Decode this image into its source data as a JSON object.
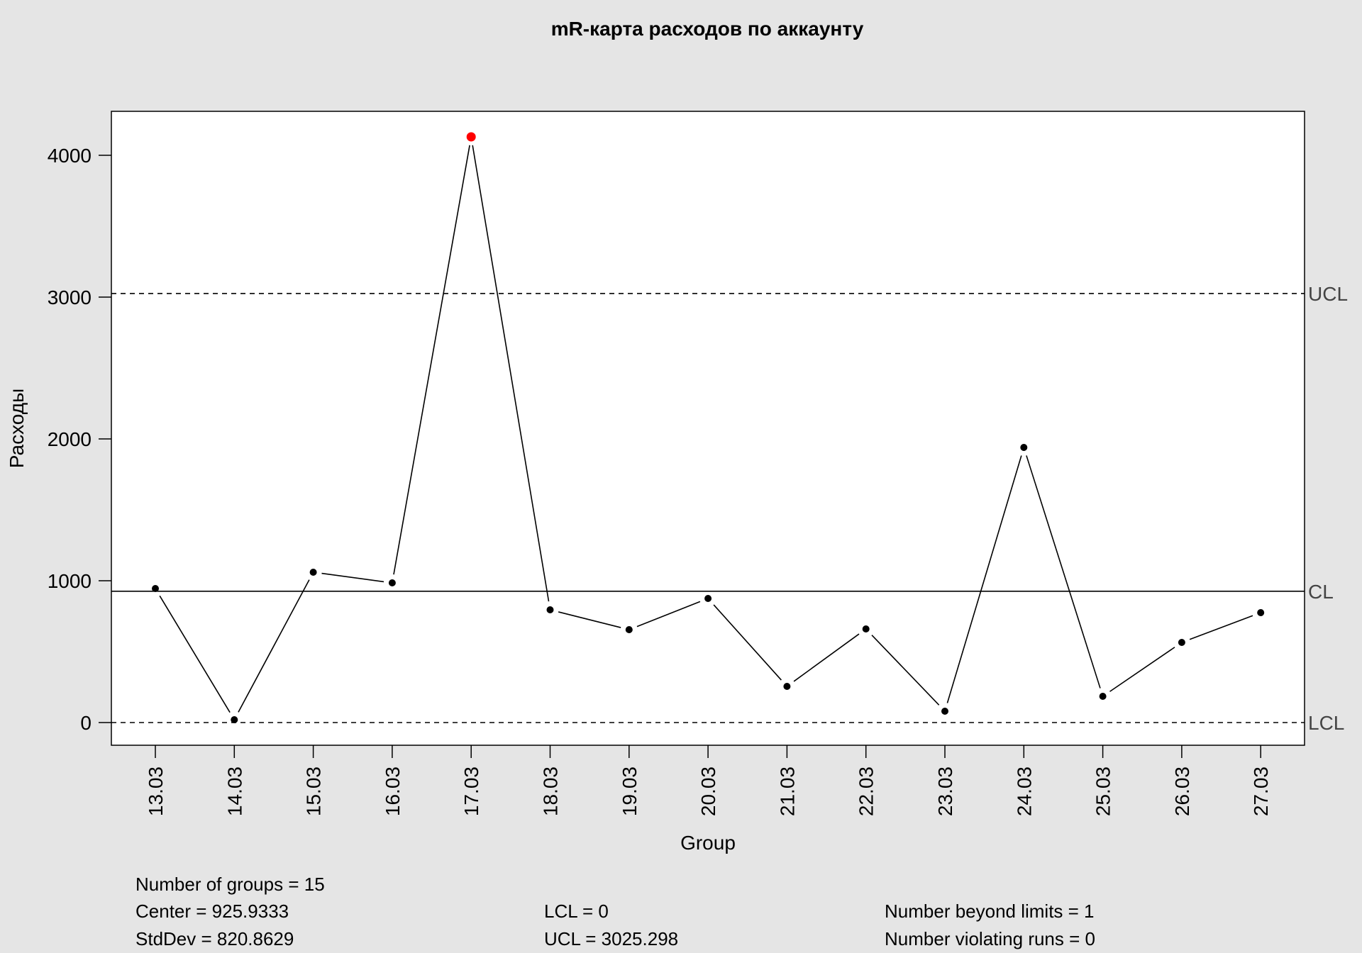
{
  "chart_data": {
    "type": "line",
    "title": "mR-карта расходов по аккаунту",
    "xlabel": "Group",
    "ylabel": "Расходы",
    "categories": [
      "13.03",
      "14.03",
      "15.03",
      "16.03",
      "17.03",
      "18.03",
      "19.03",
      "20.03",
      "21.03",
      "22.03",
      "23.03",
      "24.03",
      "25.03",
      "26.03",
      "27.03"
    ],
    "values": [
      945,
      20,
      1060,
      985,
      4130,
      795,
      655,
      875,
      255,
      660,
      80,
      1940,
      185,
      565,
      775
    ],
    "beyond_limits": [
      4
    ],
    "ylim": [
      -160,
      4310
    ],
    "yticks": [
      0,
      1000,
      2000,
      3000,
      4000
    ],
    "grid": false,
    "limits": {
      "ucl": {
        "label": "UCL",
        "value": 3025.298
      },
      "cl": {
        "label": "CL",
        "value": 925.9333
      },
      "lcl": {
        "label": "LCL",
        "value": 0
      }
    },
    "colors": {
      "normal": "#000000",
      "violation": "#ff0000",
      "background": "#e5e5e5"
    }
  },
  "stats": {
    "groups": "Number of groups = 15",
    "center": "Center = 925.9333",
    "stddev": "StdDev = 820.8629",
    "lcl": "LCL = 0",
    "ucl": "UCL = 3025.298",
    "beyond": "Number beyond limits = 1",
    "runs": "Number violating runs = 0"
  }
}
